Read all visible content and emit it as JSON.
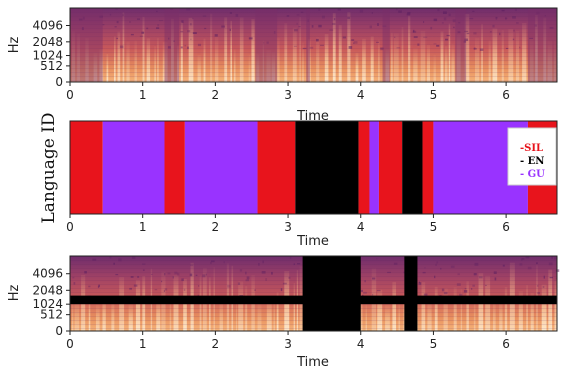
{
  "chart_data": [
    {
      "type": "heatmap",
      "panel": "original-spectrogram",
      "ylabel": "Hz",
      "xlabel": "Time",
      "xlim": [
        0,
        6.7
      ],
      "y_scale": "mel",
      "y_ticks": [
        "0",
        "512",
        "1024",
        "2048",
        "4096"
      ],
      "x_ticks": [
        "0",
        "1",
        "2",
        "3",
        "4",
        "5",
        "6"
      ],
      "low_energy_regions": [
        [
          0.0,
          0.45
        ],
        [
          1.3,
          1.5
        ],
        [
          2.55,
          2.85
        ],
        [
          3.25,
          3.3
        ],
        [
          4.3,
          4.4
        ],
        [
          5.3,
          5.45
        ],
        [
          6.3,
          6.7
        ]
      ]
    },
    {
      "type": "bar",
      "panel": "language-id",
      "ylabel": "Language ID",
      "xlabel": "Time",
      "xlim": [
        0,
        6.7
      ],
      "x_ticks": [
        "0",
        "1",
        "2",
        "3",
        "4",
        "5",
        "6"
      ],
      "segments": [
        {
          "start": 0.0,
          "end": 0.45,
          "label": "SIL"
        },
        {
          "start": 0.45,
          "end": 1.3,
          "label": "GU"
        },
        {
          "start": 1.3,
          "end": 1.58,
          "label": "SIL"
        },
        {
          "start": 1.58,
          "end": 2.58,
          "label": "GU"
        },
        {
          "start": 2.58,
          "end": 3.1,
          "label": "SIL"
        },
        {
          "start": 3.1,
          "end": 3.97,
          "label": "EN"
        },
        {
          "start": 3.97,
          "end": 4.12,
          "label": "SIL"
        },
        {
          "start": 4.12,
          "end": 4.25,
          "label": "GU"
        },
        {
          "start": 4.25,
          "end": 4.57,
          "label": "SIL"
        },
        {
          "start": 4.57,
          "end": 4.85,
          "label": "EN"
        },
        {
          "start": 4.85,
          "end": 5.0,
          "label": "SIL"
        },
        {
          "start": 5.0,
          "end": 6.3,
          "label": "GU"
        },
        {
          "start": 6.3,
          "end": 6.7,
          "label": "SIL"
        }
      ],
      "legend": [
        {
          "key": "SIL",
          "text": "-SIL",
          "color": "#e8141c"
        },
        {
          "key": "EN",
          "text": "- EN",
          "color": "#000000"
        },
        {
          "key": "GU",
          "text": "- GU",
          "color": "#9933ff"
        }
      ],
      "legend_position": "right"
    },
    {
      "type": "heatmap",
      "panel": "masked-spectrogram",
      "ylabel": "Hz",
      "xlabel": "Time",
      "xlim": [
        0,
        6.7
      ],
      "y_scale": "mel",
      "y_ticks": [
        "0",
        "512",
        "1024",
        "2048",
        "4096"
      ],
      "x_ticks": [
        "0",
        "1",
        "2",
        "3",
        "4",
        "5",
        "6"
      ],
      "time_masks": [
        [
          3.2,
          4.0
        ],
        [
          4.6,
          4.78
        ]
      ],
      "frequency_mask": [
        1024,
        1600
      ]
    }
  ]
}
